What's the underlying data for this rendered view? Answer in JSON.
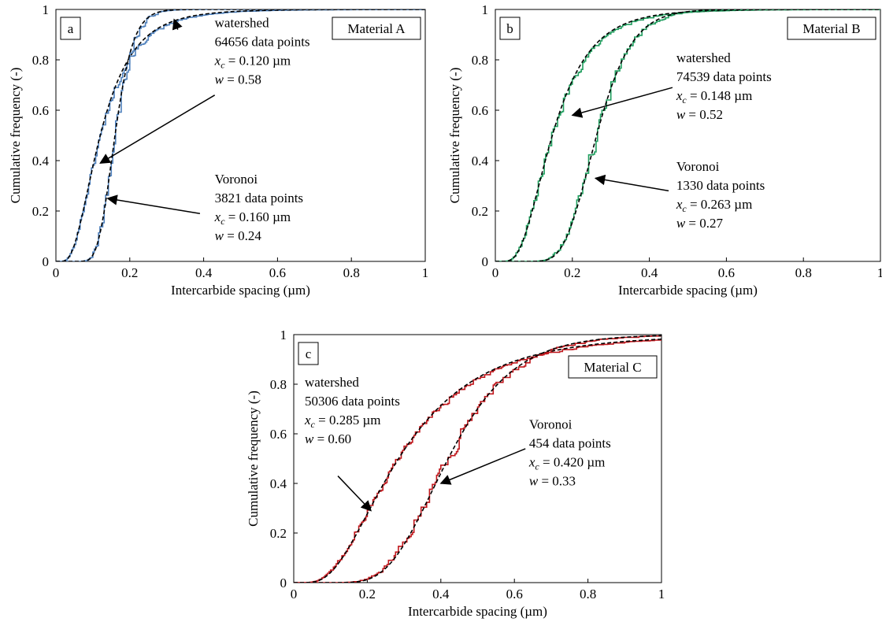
{
  "chart_data": [
    {
      "type": "line",
      "panel_label": "a",
      "material_label": "Material A",
      "xlabel": "Intercarbide spacing (µm)",
      "ylabel": "Cumulative frequency (-)",
      "xlim": [
        0,
        1
      ],
      "ylim": [
        0,
        1
      ],
      "x_ticks": [
        "0",
        "0.2",
        "0.4",
        "0.6",
        "0.8",
        "1"
      ],
      "y_ticks": [
        "0",
        "0.2",
        "0.4",
        "0.6",
        "0.8",
        "1"
      ],
      "grid": false,
      "line_color": "#4f81bd",
      "series": [
        {
          "kind": "measured",
          "method": "watershed",
          "x_c": 0.12,
          "w": 0.58,
          "style": "solid"
        },
        {
          "kind": "fit",
          "method": "watershed",
          "x_c": 0.12,
          "w": 0.58,
          "style": "dashed"
        },
        {
          "kind": "measured",
          "method": "Voronoi",
          "x_c": 0.16,
          "w": 0.24,
          "style": "solid"
        },
        {
          "kind": "fit",
          "method": "Voronoi",
          "x_c": 0.16,
          "w": 0.24,
          "style": "dashed"
        }
      ],
      "annotations": [
        {
          "lines": [
            {
              "t": "plain",
              "text": "watershed"
            },
            {
              "t": "plain",
              "text": "64656 data points"
            },
            {
              "t": "xc",
              "var": "x",
              "sub": "c",
              "rest": " = 0.120 µm"
            },
            {
              "t": "w",
              "var": "w",
              "rest": " = 0.58"
            }
          ],
          "text_at": [
            0.43,
            0.93
          ],
          "arrows": [
            {
              "from": [
                0.33,
                0.92
              ],
              "to": [
                0.32,
                0.96
              ]
            },
            {
              "from": [
                0.43,
                0.66
              ],
              "to": [
                0.12,
                0.39
              ]
            }
          ]
        },
        {
          "lines": [
            {
              "t": "plain",
              "text": "Voronoi"
            },
            {
              "t": "plain",
              "text": "3821 data points"
            },
            {
              "t": "xc",
              "var": "x",
              "sub": "c",
              "rest": " = 0.160 µm"
            },
            {
              "t": "w",
              "var": "w",
              "rest": " = 0.24"
            }
          ],
          "text_at": [
            0.43,
            0.31
          ],
          "arrows": [
            {
              "from": [
                0.39,
                0.19
              ],
              "to": [
                0.14,
                0.25
              ]
            }
          ]
        }
      ]
    },
    {
      "type": "line",
      "panel_label": "b",
      "material_label": "Material B",
      "xlabel": "Intercarbide spacing (µm)",
      "ylabel": "Cumulative frequency (-)",
      "xlim": [
        0,
        1
      ],
      "ylim": [
        0,
        1
      ],
      "x_ticks": [
        "0",
        "0.2",
        "0.4",
        "0.6",
        "0.8",
        "1"
      ],
      "y_ticks": [
        "0",
        "0.2",
        "0.4",
        "0.6",
        "0.8",
        "1"
      ],
      "grid": false,
      "line_color": "#1f9e5e",
      "series": [
        {
          "kind": "measured",
          "method": "watershed",
          "x_c": 0.148,
          "w": 0.52,
          "style": "solid"
        },
        {
          "kind": "fit",
          "method": "watershed",
          "x_c": 0.148,
          "w": 0.52,
          "style": "dashed"
        },
        {
          "kind": "measured",
          "method": "Voronoi",
          "x_c": 0.263,
          "w": 0.27,
          "style": "solid"
        },
        {
          "kind": "fit",
          "method": "Voronoi",
          "x_c": 0.263,
          "w": 0.27,
          "style": "dashed"
        }
      ],
      "annotations": [
        {
          "lines": [
            {
              "t": "plain",
              "text": "watershed"
            },
            {
              "t": "plain",
              "text": "74539 data points"
            },
            {
              "t": "xc",
              "var": "x",
              "sub": "c",
              "rest": " = 0.148 µm"
            },
            {
              "t": "w",
              "var": "w",
              "rest": " = 0.52"
            }
          ],
          "text_at": [
            0.47,
            0.79
          ],
          "arrows": [
            {
              "from": [
                0.46,
                0.69
              ],
              "to": [
                0.2,
                0.58
              ]
            }
          ]
        },
        {
          "lines": [
            {
              "t": "plain",
              "text": "Voronoi"
            },
            {
              "t": "plain",
              "text": "1330 data points"
            },
            {
              "t": "xc",
              "var": "x",
              "sub": "c",
              "rest": " = 0.263 µm"
            },
            {
              "t": "w",
              "var": "w",
              "rest": " = 0.27"
            }
          ],
          "text_at": [
            0.47,
            0.36
          ],
          "arrows": [
            {
              "from": [
                0.45,
                0.28
              ],
              "to": [
                0.26,
                0.33
              ]
            }
          ]
        }
      ]
    },
    {
      "type": "line",
      "panel_label": "c",
      "material_label": "Material C",
      "xlabel": "Intercarbide spacing (µm)",
      "ylabel": "Cumulative frequency (-)",
      "xlim": [
        0,
        1
      ],
      "ylim": [
        0,
        1
      ],
      "x_ticks": [
        "0",
        "0.2",
        "0.4",
        "0.6",
        "0.8",
        "1"
      ],
      "y_ticks": [
        "0",
        "0.2",
        "0.4",
        "0.6",
        "0.8",
        "1"
      ],
      "grid": false,
      "line_color": "#c0171c",
      "series": [
        {
          "kind": "measured",
          "method": "watershed",
          "x_c": 0.285,
          "w": 0.6,
          "style": "solid"
        },
        {
          "kind": "fit",
          "method": "watershed",
          "x_c": 0.285,
          "w": 0.6,
          "style": "dashed"
        },
        {
          "kind": "measured",
          "method": "Voronoi",
          "x_c": 0.42,
          "w": 0.33,
          "style": "solid"
        },
        {
          "kind": "fit",
          "method": "Voronoi",
          "x_c": 0.42,
          "w": 0.33,
          "style": "dashed"
        }
      ],
      "annotations": [
        {
          "lines": [
            {
              "t": "plain",
              "text": "watershed"
            },
            {
              "t": "plain",
              "text": "50306 data points"
            },
            {
              "t": "xc",
              "var": "x",
              "sub": "c",
              "rest": " = 0.285 µm"
            },
            {
              "t": "w",
              "var": "w",
              "rest": " = 0.60"
            }
          ],
          "text_at": [
            0.03,
            0.79
          ],
          "arrows": [
            {
              "from": [
                0.12,
                0.43
              ],
              "to": [
                0.21,
                0.29
              ]
            }
          ]
        },
        {
          "lines": [
            {
              "t": "plain",
              "text": "Voronoi"
            },
            {
              "t": "plain",
              "text": "454 data points"
            },
            {
              "t": "xc",
              "var": "x",
              "sub": "c",
              "rest": " = 0.420 µm"
            },
            {
              "t": "w",
              "var": "w",
              "rest": " = 0.33"
            }
          ],
          "text_at": [
            0.64,
            0.62
          ],
          "arrows": [
            {
              "from": [
                0.63,
                0.54
              ],
              "to": [
                0.4,
                0.4
              ]
            }
          ]
        }
      ]
    }
  ]
}
